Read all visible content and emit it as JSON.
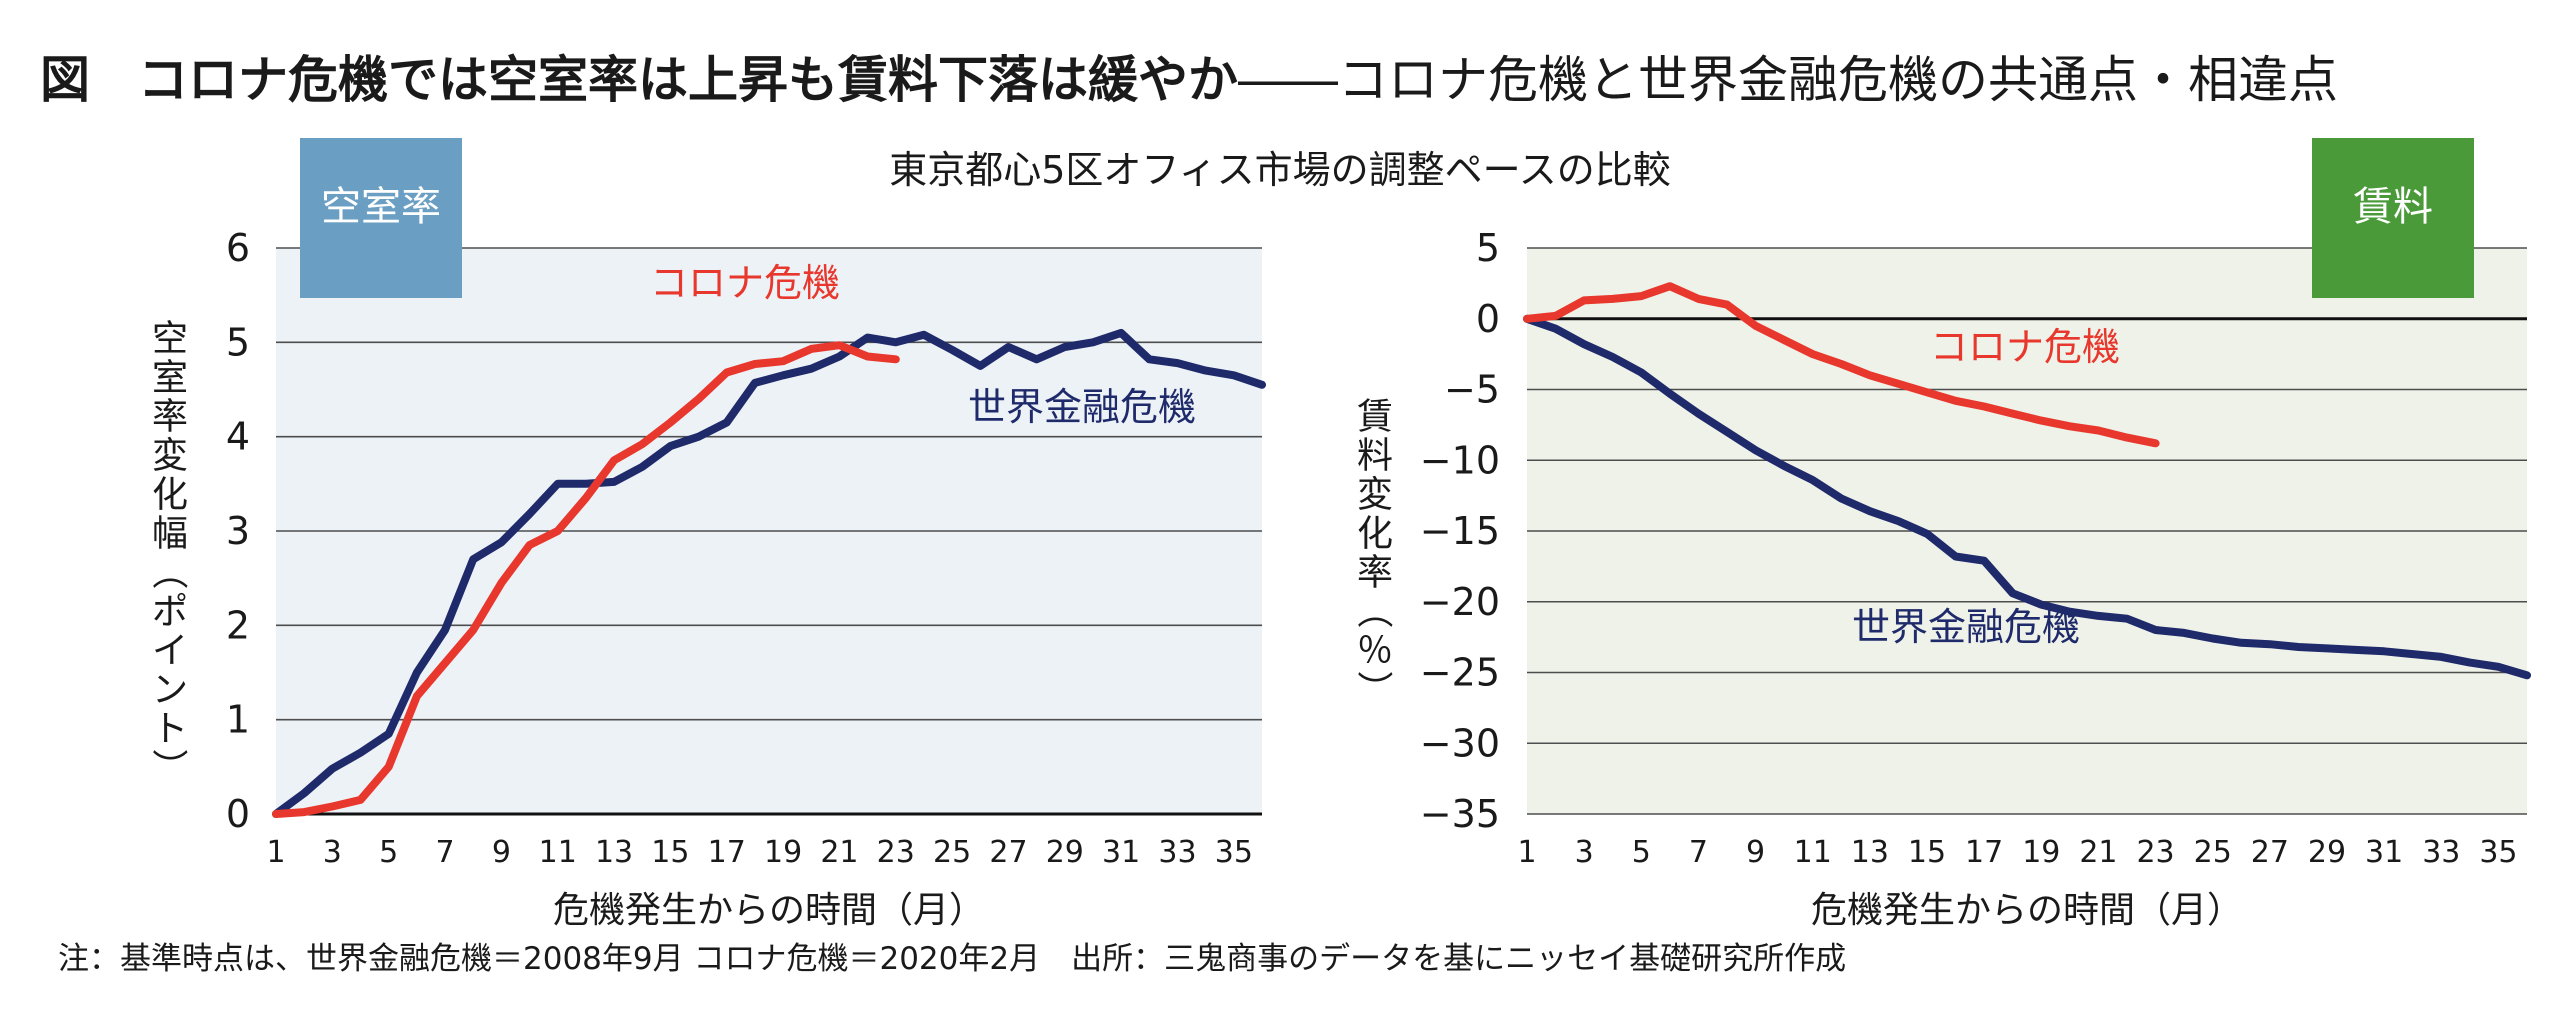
{
  "header": {
    "figure_label": "図",
    "title_main": "コロナ危機では空室率は上昇も賃料下落は緩やか",
    "title_sub": "――コロナ危機と世界金融危機の共通点・相違点",
    "subtitle": "東京都心5区オフィス市場の調整ペースの比較"
  },
  "footer": {
    "note": "注：基準時点は、世界金融危機＝2008年9月 コロナ危機＝2020年2月　出所：三鬼商事のデータを基にニッセイ基礎研究所作成"
  },
  "colors": {
    "covid": "#e8382d",
    "gfc": "#1f2a6b",
    "vacancy_badge": "#6a9fc3",
    "rent_badge": "#4a9a3a",
    "vacancy_plot_bg": "#edf2f7",
    "rent_plot_bg": "#eff2e9"
  },
  "chart_data": [
    {
      "type": "line",
      "badge": "空室率",
      "xlabel": "危機発生からの時間（月）",
      "ylabel": "空室率変化幅（ポイント）",
      "xlim": [
        1,
        36
      ],
      "ylim": [
        0,
        6
      ],
      "yticks": [
        "0",
        "1",
        "2",
        "3",
        "4",
        "5",
        "6"
      ],
      "xticks": [
        "1",
        "3",
        "5",
        "7",
        "9",
        "11",
        "13",
        "15",
        "17",
        "19",
        "21",
        "23",
        "25",
        "27",
        "29",
        "31",
        "33",
        "35"
      ],
      "grid": true,
      "series": [
        {
          "name": "コロナ危機",
          "color_key": "covid",
          "x": [
            1,
            2,
            3,
            4,
            5,
            6,
            7,
            8,
            9,
            10,
            11,
            12,
            13,
            14,
            15,
            16,
            17,
            18,
            19,
            20,
            21,
            22,
            23
          ],
          "values": [
            0,
            0.02,
            0.08,
            0.15,
            0.5,
            1.25,
            1.6,
            1.95,
            2.45,
            2.85,
            3.0,
            3.35,
            3.75,
            3.92,
            4.15,
            4.4,
            4.68,
            4.77,
            4.8,
            4.93,
            4.97,
            4.85,
            4.82
          ]
        },
        {
          "name": "世界金融危機",
          "color_key": "gfc",
          "x": [
            1,
            2,
            3,
            4,
            5,
            6,
            7,
            8,
            9,
            10,
            11,
            12,
            13,
            14,
            15,
            16,
            17,
            18,
            19,
            20,
            21,
            22,
            23,
            24,
            25,
            26,
            27,
            28,
            29,
            30,
            31,
            32,
            33,
            34,
            35,
            36
          ],
          "values": [
            0,
            0.22,
            0.48,
            0.65,
            0.85,
            1.5,
            1.95,
            2.7,
            2.88,
            3.18,
            3.5,
            3.5,
            3.52,
            3.68,
            3.9,
            4.0,
            4.15,
            4.57,
            4.65,
            4.72,
            4.85,
            5.05,
            5.0,
            5.08,
            4.92,
            4.75,
            4.95,
            4.82,
            4.95,
            5.0,
            5.1,
            4.82,
            4.78,
            4.7,
            4.65,
            4.55
          ]
        }
      ]
    },
    {
      "type": "line",
      "badge": "賃料",
      "xlabel": "危機発生からの時間（月）",
      "ylabel": "賃料変化率（％）",
      "xlim": [
        1,
        36
      ],
      "ylim": [
        -35,
        5
      ],
      "yticks": [
        "5",
        "0",
        "−5",
        "−10",
        "−15",
        "−20",
        "−25",
        "−30",
        "−35"
      ],
      "xticks": [
        "1",
        "3",
        "5",
        "7",
        "9",
        "11",
        "13",
        "15",
        "17",
        "19",
        "21",
        "23",
        "25",
        "27",
        "29",
        "31",
        "33",
        "35"
      ],
      "grid": true,
      "series": [
        {
          "name": "コロナ危機",
          "color_key": "covid",
          "x": [
            1,
            2,
            3,
            4,
            5,
            6,
            7,
            8,
            9,
            10,
            11,
            12,
            13,
            14,
            15,
            16,
            17,
            18,
            19,
            20,
            21,
            22,
            23
          ],
          "values": [
            0,
            0.2,
            1.3,
            1.4,
            1.6,
            2.3,
            1.4,
            1.0,
            -0.5,
            -1.5,
            -2.5,
            -3.2,
            -4.0,
            -4.6,
            -5.2,
            -5.8,
            -6.2,
            -6.7,
            -7.2,
            -7.6,
            -7.9,
            -8.4,
            -8.8
          ]
        },
        {
          "name": "世界金融危機",
          "color_key": "gfc",
          "x": [
            1,
            2,
            3,
            4,
            5,
            6,
            7,
            8,
            9,
            10,
            11,
            12,
            13,
            14,
            15,
            16,
            17,
            18,
            19,
            20,
            21,
            22,
            23,
            24,
            25,
            26,
            27,
            28,
            29,
            30,
            31,
            32,
            33,
            34,
            35,
            36
          ],
          "values": [
            0,
            -0.7,
            -1.8,
            -2.7,
            -3.8,
            -5.3,
            -6.7,
            -8.0,
            -9.3,
            -10.4,
            -11.4,
            -12.7,
            -13.6,
            -14.3,
            -15.2,
            -16.8,
            -17.1,
            -19.4,
            -20.2,
            -20.7,
            -21.0,
            -21.2,
            -22.0,
            -22.2,
            -22.6,
            -22.9,
            -23.0,
            -23.2,
            -23.3,
            -23.4,
            -23.5,
            -23.7,
            -23.9,
            -24.3,
            -24.6,
            -25.2
          ]
        }
      ]
    }
  ]
}
